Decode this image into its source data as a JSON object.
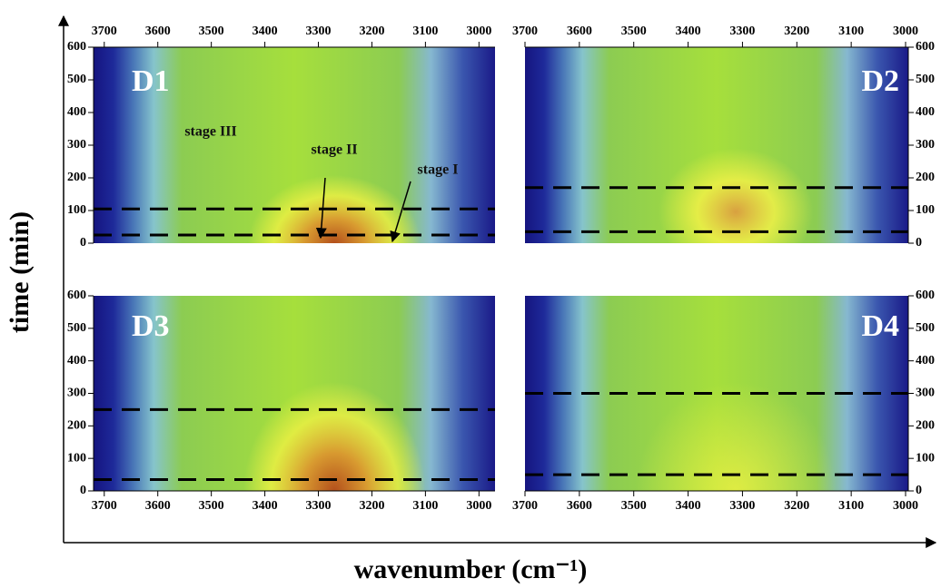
{
  "figure": {
    "ylabel": "time (min)",
    "xlabel": "wavenumber (cm⁻¹)"
  },
  "chart_data": [
    {
      "type": "heatmap",
      "title": "D1",
      "xlim": [
        3720,
        2970
      ],
      "xticks": [
        3700,
        3600,
        3500,
        3400,
        3300,
        3200,
        3100,
        3000
      ],
      "xaxis_position": "top",
      "ylim": [
        0,
        600
      ],
      "yticks": [
        0,
        100,
        200,
        300,
        400,
        500,
        600
      ],
      "yaxis_position": "left",
      "hlines": [
        25,
        105
      ],
      "annotations": [
        "stage III",
        "stage II",
        "stage I"
      ]
    },
    {
      "type": "heatmap",
      "title": "D2",
      "xlim": [
        3700,
        2995
      ],
      "xticks": [
        3700,
        3600,
        3500,
        3400,
        3300,
        3200,
        3100,
        3000
      ],
      "xaxis_position": "top",
      "ylim": [
        0,
        600
      ],
      "yticks": [
        0,
        100,
        200,
        300,
        400,
        500,
        600
      ],
      "yaxis_position": "right",
      "hlines": [
        35,
        170
      ]
    },
    {
      "type": "heatmap",
      "title": "D3",
      "xlim": [
        3720,
        2970
      ],
      "xticks": [
        3700,
        3600,
        3500,
        3400,
        3300,
        3200,
        3100,
        3000
      ],
      "xaxis_position": "bottom",
      "ylim": [
        0,
        600
      ],
      "yticks": [
        0,
        100,
        200,
        300,
        400,
        500,
        600
      ],
      "yaxis_position": "left",
      "hlines": [
        35,
        250
      ]
    },
    {
      "type": "heatmap",
      "title": "D4",
      "xlim": [
        3700,
        2995
      ],
      "xticks": [
        3700,
        3600,
        3500,
        3400,
        3300,
        3200,
        3100,
        3000
      ],
      "xaxis_position": "bottom",
      "ylim": [
        0,
        600
      ],
      "yticks": [
        0,
        100,
        200,
        300,
        400,
        500,
        600
      ],
      "yaxis_position": "right",
      "hlines": [
        50,
        300
      ]
    }
  ]
}
